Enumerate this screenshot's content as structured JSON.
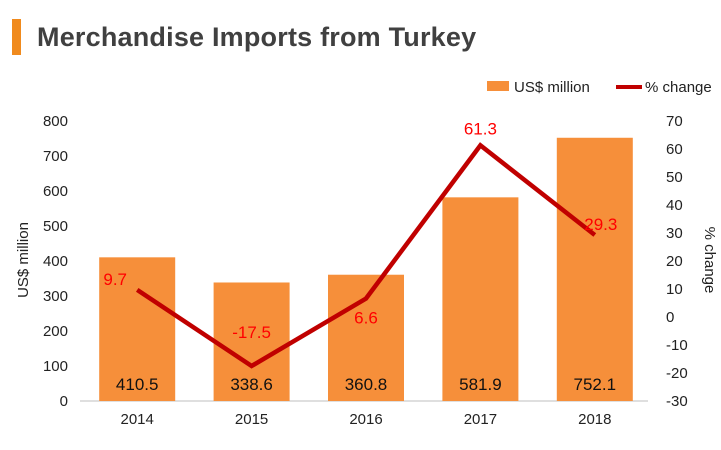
{
  "header": {
    "title": "Merchandise Imports from Turkey"
  },
  "colors": {
    "bar": "#f68f3a",
    "line": "#c00000",
    "accent": "#f08a1d",
    "line_label": "#ff0000"
  },
  "chart_data": {
    "type": "bar",
    "title": "Merchandise Imports from Turkey",
    "categories": [
      "2014",
      "2015",
      "2016",
      "2017",
      "2018"
    ],
    "series": [
      {
        "name": "US$ million",
        "type": "bar",
        "axis": "left",
        "values": [
          410.5,
          338.6,
          360.8,
          581.9,
          752.1
        ],
        "labels": [
          "410.5",
          "338.6",
          "360.8",
          "581.9",
          "752.1"
        ]
      },
      {
        "name": "% change",
        "type": "line",
        "axis": "right",
        "values": [
          9.7,
          -17.5,
          6.6,
          61.3,
          29.3
        ],
        "labels": [
          "9.7",
          "-17.5",
          "6.6",
          "61.3",
          "29.3"
        ]
      }
    ],
    "ylabel": "US$ million",
    "y2label": "% change",
    "ylim": [
      0,
      800
    ],
    "y2lim": [
      -30,
      70
    ],
    "yticks": [
      "0",
      "100",
      "200",
      "300",
      "400",
      "500",
      "600",
      "700",
      "800"
    ],
    "y2ticks": [
      "-30",
      "-20",
      "-10",
      "0",
      "10",
      "20",
      "30",
      "40",
      "50",
      "60",
      "70"
    ],
    "grid": false,
    "legend": "top-right"
  }
}
